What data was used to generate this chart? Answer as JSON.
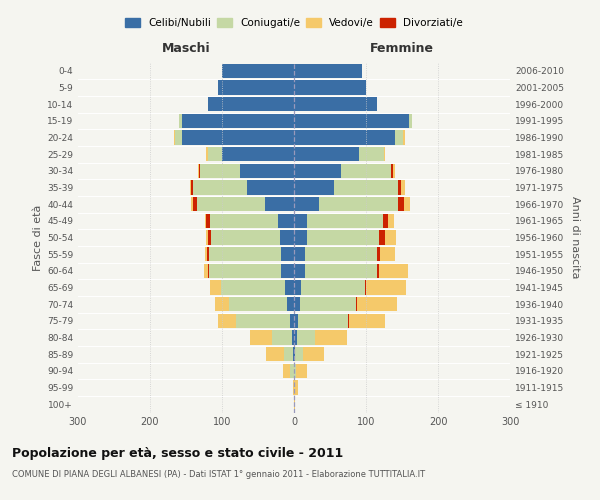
{
  "age_groups": [
    "100+",
    "95-99",
    "90-94",
    "85-89",
    "80-84",
    "75-79",
    "70-74",
    "65-69",
    "60-64",
    "55-59",
    "50-54",
    "45-49",
    "40-44",
    "35-39",
    "30-34",
    "25-29",
    "20-24",
    "15-19",
    "10-14",
    "5-9",
    "0-4"
  ],
  "birth_years": [
    "≤ 1910",
    "1911-1915",
    "1916-1920",
    "1921-1925",
    "1926-1930",
    "1931-1935",
    "1936-1940",
    "1941-1945",
    "1946-1950",
    "1951-1955",
    "1956-1960",
    "1961-1965",
    "1966-1970",
    "1971-1975",
    "1976-1980",
    "1981-1985",
    "1986-1990",
    "1991-1995",
    "1996-2000",
    "2001-2005",
    "2006-2010"
  ],
  "maschi_celibi": [
    0,
    0,
    0,
    2,
    3,
    5,
    10,
    12,
    18,
    18,
    20,
    22,
    40,
    65,
    75,
    100,
    155,
    155,
    120,
    105,
    100
  ],
  "maschi_coniugati": [
    0,
    0,
    5,
    12,
    28,
    75,
    80,
    90,
    100,
    100,
    95,
    95,
    95,
    75,
    55,
    20,
    10,
    5,
    0,
    0,
    0
  ],
  "maschi_vedovi": [
    0,
    2,
    10,
    25,
    30,
    25,
    20,
    15,
    5,
    2,
    2,
    2,
    3,
    2,
    2,
    2,
    2,
    0,
    0,
    0,
    0
  ],
  "maschi_divorziati": [
    0,
    0,
    0,
    0,
    0,
    0,
    0,
    0,
    2,
    3,
    5,
    5,
    5,
    3,
    2,
    0,
    0,
    0,
    0,
    0,
    0
  ],
  "femmine_nubili": [
    0,
    0,
    0,
    2,
    4,
    5,
    8,
    10,
    15,
    15,
    18,
    18,
    35,
    55,
    65,
    90,
    140,
    160,
    115,
    100,
    95
  ],
  "femmine_coniugate": [
    0,
    0,
    3,
    10,
    25,
    70,
    78,
    88,
    100,
    100,
    100,
    105,
    110,
    90,
    70,
    35,
    12,
    4,
    0,
    0,
    0
  ],
  "femmine_vedove": [
    2,
    5,
    15,
    30,
    45,
    50,
    55,
    55,
    40,
    20,
    15,
    8,
    8,
    5,
    3,
    2,
    2,
    0,
    0,
    0,
    0
  ],
  "femmine_divorziate": [
    0,
    0,
    0,
    0,
    0,
    2,
    2,
    2,
    3,
    5,
    8,
    8,
    8,
    4,
    2,
    0,
    0,
    0,
    0,
    0,
    0
  ],
  "color_celibi": "#3a6ea5",
  "color_coniugati": "#c5d8a4",
  "color_vedovi": "#f5c96a",
  "color_divorziati": "#cc2200",
  "xlim": 300,
  "bg_color": "#f5f5f0",
  "title": "Popolazione per età, sesso e stato civile - 2011",
  "subtitle": "COMUNE DI PIANA DEGLI ALBANESI (PA) - Dati ISTAT 1° gennaio 2011 - Elaborazione TUTTITALIA.IT",
  "label_maschi": "Maschi",
  "label_femmine": "Femmine",
  "label_fasce": "Fasce di età",
  "label_anni": "Anni di nascita",
  "legend_labels": [
    "Celibi/Nubili",
    "Coniugati/e",
    "Vedovi/e",
    "Divorziati/e"
  ],
  "xticks": [
    -300,
    -200,
    -100,
    0,
    100,
    200,
    300
  ],
  "xtick_labels": [
    "300",
    "200",
    "100",
    "0",
    "100",
    "200",
    "300"
  ]
}
